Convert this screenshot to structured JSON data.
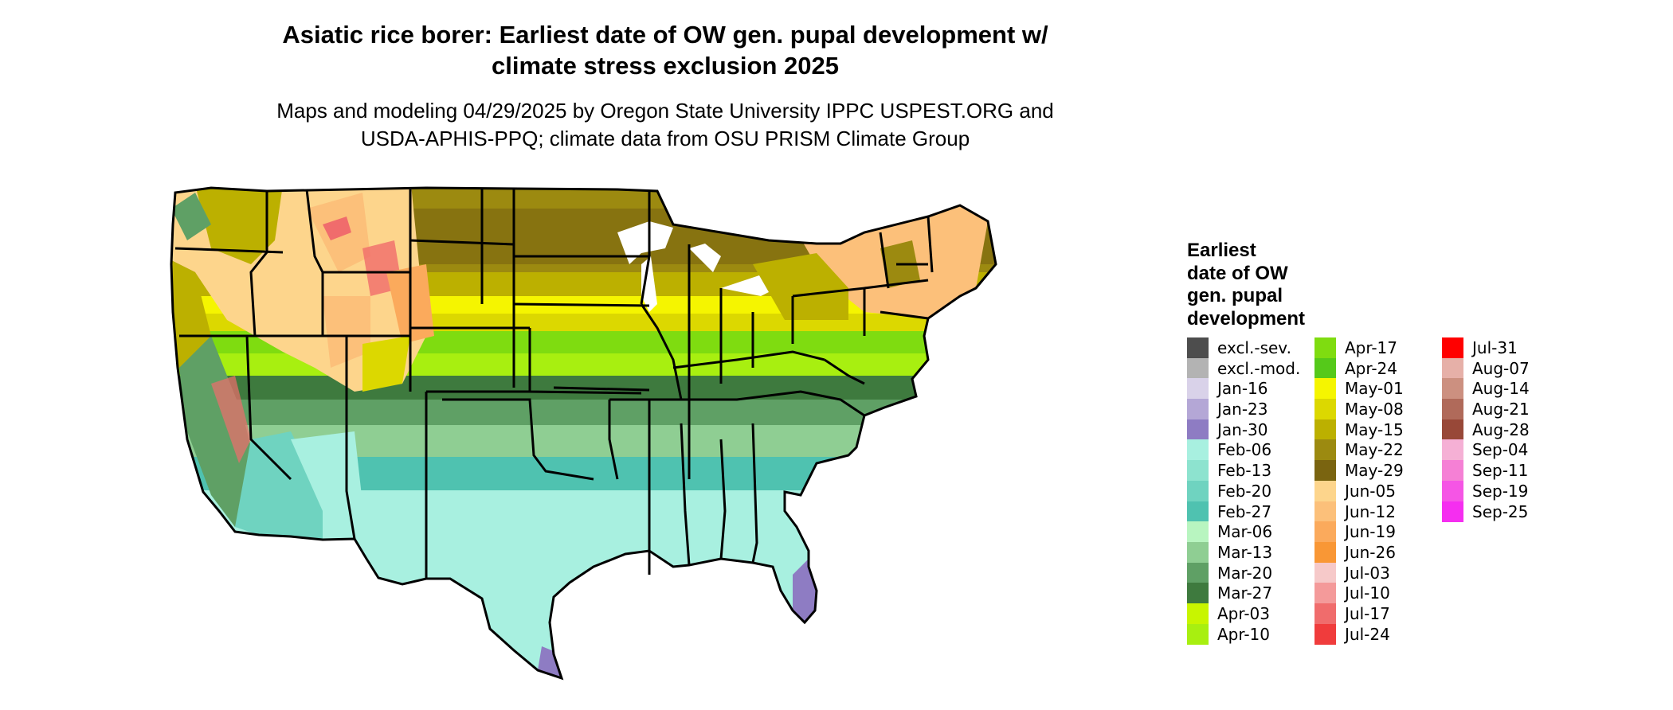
{
  "title": {
    "line1": "Asiatic rice borer: Earliest date of OW gen. pupal development w/",
    "line2": "climate stress exclusion 2025"
  },
  "subtitle": {
    "line1": "Maps and modeling 04/29/2025 by Oregon State University IPPC USPEST.ORG and",
    "line2": "USDA-APHIS-PPQ; climate data from OSU PRISM Climate Group"
  },
  "map": {
    "region": "contiguous United States",
    "description_colors": {
      "background": "#ffffff",
      "state_borders": "#000000"
    }
  },
  "legend": {
    "title_lines": [
      "Earliest",
      "date of OW",
      "gen. pupal",
      "development"
    ],
    "columns": [
      [
        {
          "label": "excl.-sev.",
          "color": "#4d4d4d"
        },
        {
          "label": "excl.-mod.",
          "color": "#b3b3b3"
        },
        {
          "label": "Jan-16",
          "color": "#d9d2e9"
        },
        {
          "label": "Jan-23",
          "color": "#b4a7d6"
        },
        {
          "label": "Jan-30",
          "color": "#8e7cc3"
        },
        {
          "label": "Feb-06",
          "color": "#a8f0e0"
        },
        {
          "label": "Feb-13",
          "color": "#8de3cf"
        },
        {
          "label": "Feb-20",
          "color": "#6fd3c0"
        },
        {
          "label": "Feb-27",
          "color": "#4fc2b0"
        },
        {
          "label": "Mar-06",
          "color": "#b8f5c0"
        },
        {
          "label": "Mar-13",
          "color": "#8fce93"
        },
        {
          "label": "Mar-20",
          "color": "#5fa065"
        },
        {
          "label": "Mar-27",
          "color": "#3e7a3e"
        },
        {
          "label": "Apr-03",
          "color": "#c8f500"
        },
        {
          "label": "Apr-10",
          "color": "#a8ef10"
        }
      ],
      [
        {
          "label": "Apr-17",
          "color": "#7fdc10"
        },
        {
          "label": "Apr-24",
          "color": "#55c91a"
        },
        {
          "label": "May-01",
          "color": "#f5f500"
        },
        {
          "label": "May-08",
          "color": "#dcd800"
        },
        {
          "label": "May-15",
          "color": "#bcb000"
        },
        {
          "label": "May-22",
          "color": "#9c8a10"
        },
        {
          "label": "May-29",
          "color": "#7a6410"
        },
        {
          "label": "Jun-05",
          "color": "#fdd58c"
        },
        {
          "label": "Jun-12",
          "color": "#fcc07a"
        },
        {
          "label": "Jun-19",
          "color": "#fbaa5c"
        },
        {
          "label": "Jun-26",
          "color": "#f99735"
        },
        {
          "label": "Jul-03",
          "color": "#f6c9c9"
        },
        {
          "label": "Jul-10",
          "color": "#f49a9a"
        },
        {
          "label": "Jul-17",
          "color": "#f06c6c"
        },
        {
          "label": "Jul-24",
          "color": "#f03c3c"
        }
      ],
      [
        {
          "label": "Jul-31",
          "color": "#ff0000"
        },
        {
          "label": "Aug-07",
          "color": "#e6b0a8"
        },
        {
          "label": "Aug-14",
          "color": "#cc9080"
        },
        {
          "label": "Aug-21",
          "color": "#b06a5a"
        },
        {
          "label": "Aug-28",
          "color": "#984838"
        },
        {
          "label": "Sep-04",
          "color": "#f5b0d5"
        },
        {
          "label": "Sep-11",
          "color": "#f580d5"
        },
        {
          "label": "Sep-19",
          "color": "#f555e5"
        },
        {
          "label": "Sep-25",
          "color": "#f52ef0"
        }
      ]
    ]
  }
}
